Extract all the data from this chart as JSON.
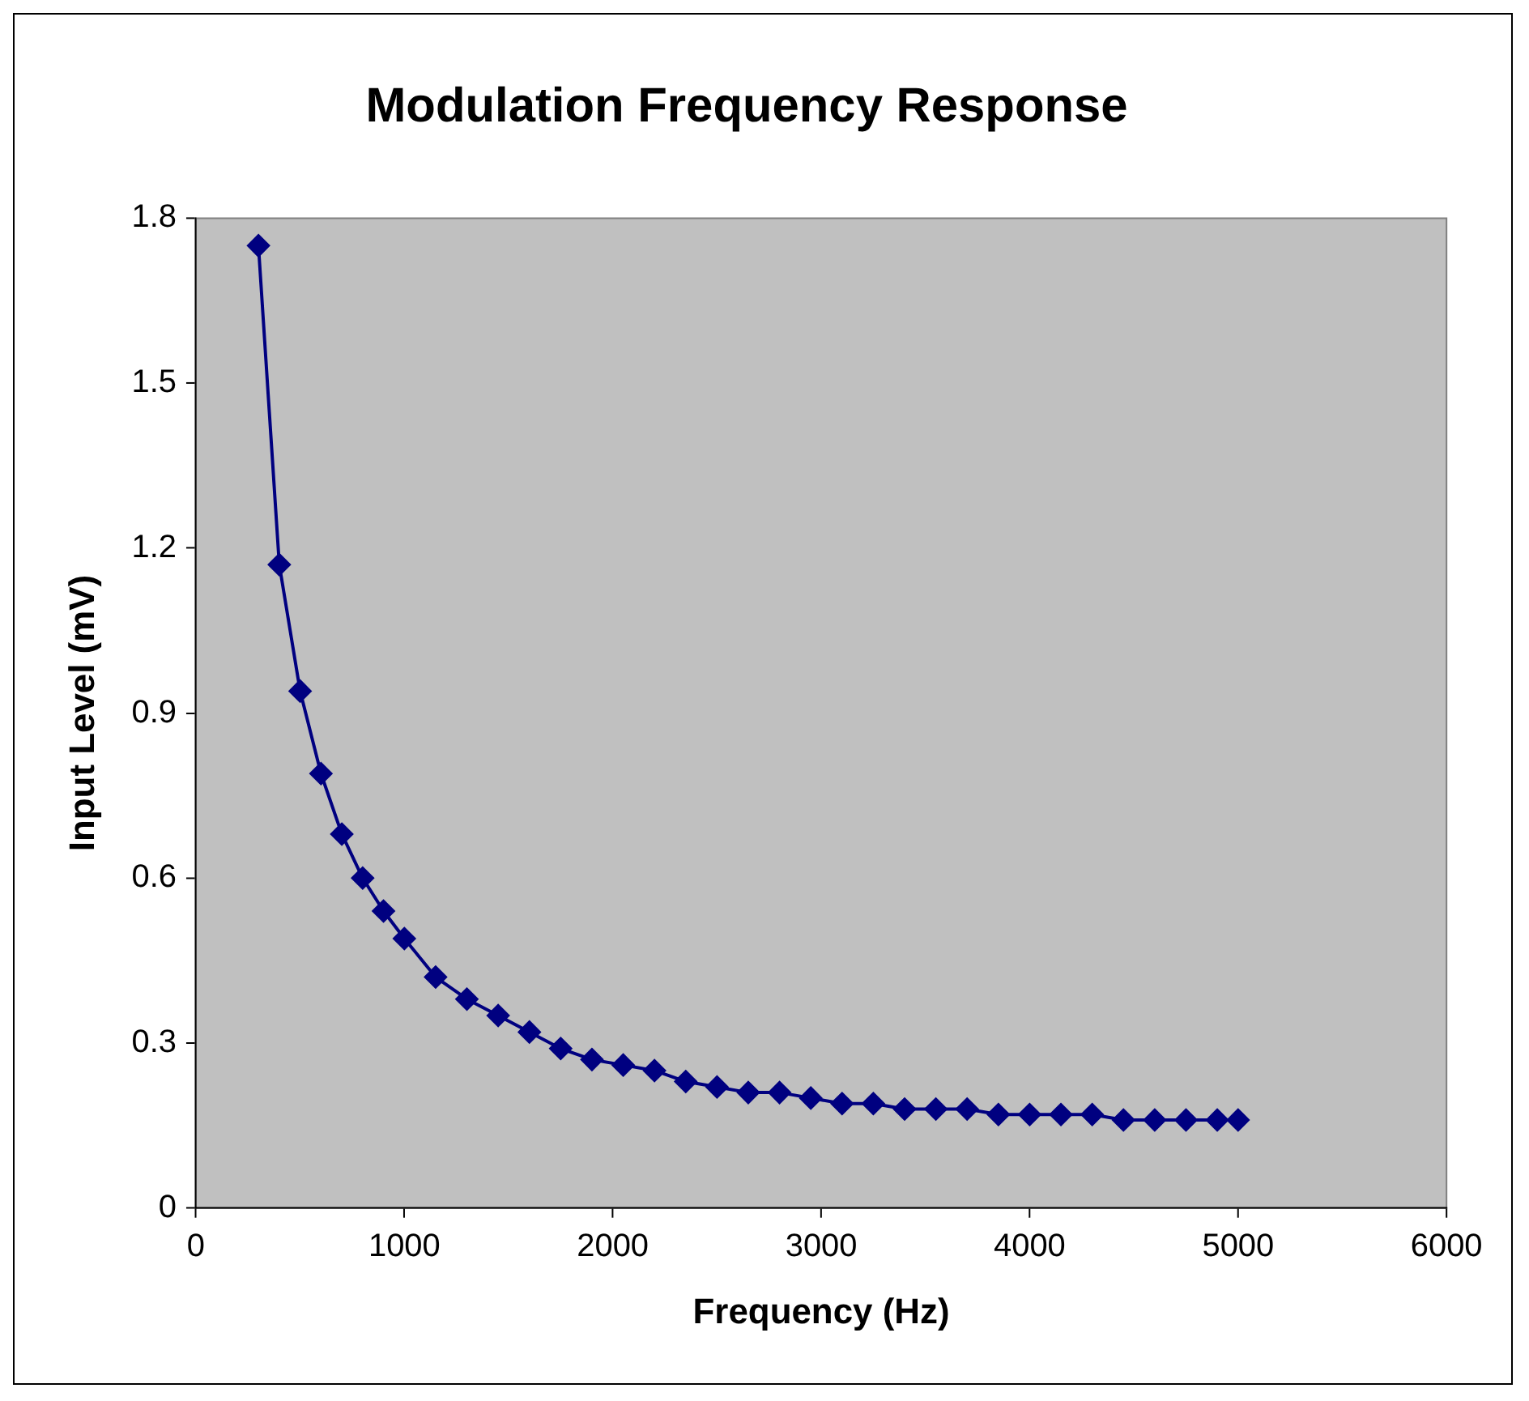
{
  "chart_data": {
    "type": "line",
    "title": "Modulation Frequency Response",
    "xlabel": "Frequency (Hz)",
    "ylabel": "Input Level (mV)",
    "x": [
      300,
      400,
      500,
      600,
      700,
      800,
      900,
      1000,
      1150,
      1300,
      1450,
      1600,
      1750,
      1900,
      2050,
      2200,
      2350,
      2500,
      2650,
      2800,
      2950,
      3100,
      3250,
      3400,
      3550,
      3700,
      3850,
      4000,
      4150,
      4300,
      4450,
      4600,
      4750,
      4900,
      5000
    ],
    "series": [
      {
        "color": "#000080",
        "values": [
          1.75,
          1.17,
          0.94,
          0.79,
          0.68,
          0.6,
          0.54,
          0.49,
          0.42,
          0.38,
          0.35,
          0.32,
          0.29,
          0.27,
          0.26,
          0.25,
          0.23,
          0.22,
          0.21,
          0.21,
          0.2,
          0.19,
          0.19,
          0.18,
          0.18,
          0.18,
          0.17,
          0.17,
          0.17,
          0.17,
          0.16,
          0.16,
          0.16,
          0.16,
          0.16
        ]
      }
    ],
    "xlim": [
      0,
      6000
    ],
    "xticks": [
      0,
      1000,
      2000,
      3000,
      4000,
      5000,
      6000
    ],
    "ylim": [
      0,
      1.8
    ],
    "yticks": [
      0,
      0.3,
      0.6,
      0.9,
      1.2,
      1.5,
      1.8
    ],
    "grid": false,
    "legend": false,
    "marker": "diamond",
    "line_style": "solid"
  }
}
